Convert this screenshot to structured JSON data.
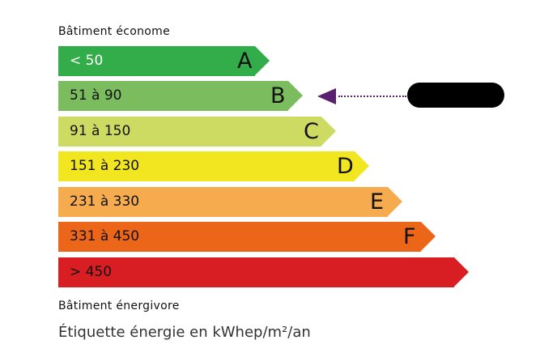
{
  "top_label": "Bâtiment économe",
  "bottom_label": "Bâtiment énergivore",
  "footer": "Étiquette énergie en kWhep/m²/an",
  "classes": [
    {
      "range": "< 50",
      "letter": "A",
      "color": "#33ad4a",
      "text_color": "#ffffff"
    },
    {
      "range": "51 à 90",
      "letter": "B",
      "color": "#7bbd5e",
      "text_color": "#111111"
    },
    {
      "range": "91 à 150",
      "letter": "C",
      "color": "#cddb62",
      "text_color": "#111111"
    },
    {
      "range": "151 à 230",
      "letter": "D",
      "color": "#f2e620",
      "text_color": "#111111"
    },
    {
      "range": "231 à 330",
      "letter": "E",
      "color": "#f6ab4e",
      "text_color": "#111111"
    },
    {
      "range": "331 à 450",
      "letter": "F",
      "color": "#ec6619",
      "text_color": "#111111"
    },
    {
      "range": "> 450",
      "letter": "",
      "color": "#d81e22",
      "text_color": "#111111"
    }
  ],
  "indicator": {
    "class": "B",
    "color": "#5a1f6e",
    "value_redacted": true
  }
}
